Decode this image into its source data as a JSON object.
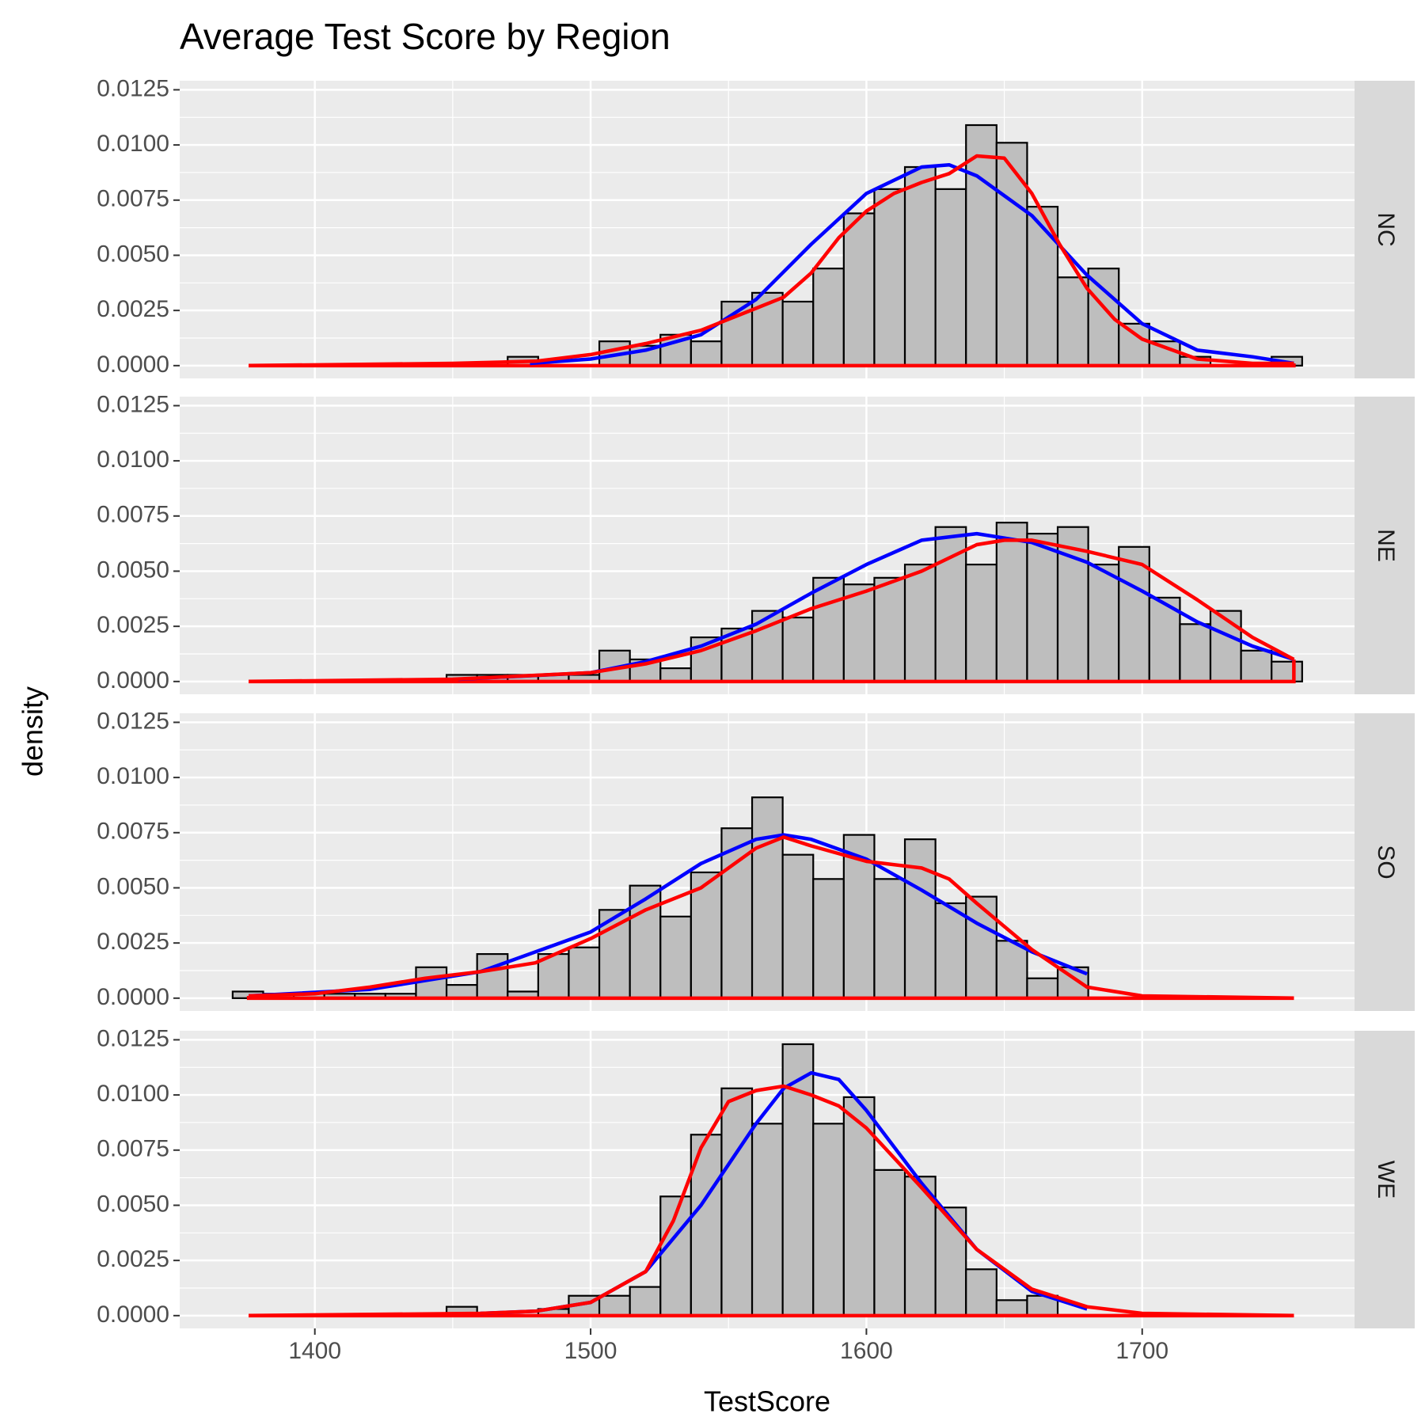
{
  "chart_data": {
    "type": "histogram",
    "title": "Average Test Score by Region",
    "x_label": "TestScore",
    "y_label": "density",
    "bar_color": "#bebebe",
    "kde_color": "#ff0000",
    "normal_color": "#0000ff",
    "xlim": [
      1351,
      1777
    ],
    "ylim": [
      -0.00058,
      0.01291
    ],
    "xticks": [
      1400,
      1500,
      1600,
      1700
    ],
    "yticks": [
      {
        "value": 0,
        "label": "0.0000"
      },
      {
        "value": 0.0025,
        "label": "0.0025"
      },
      {
        "value": 0.005,
        "label": "0.0050"
      },
      {
        "value": 0.0075,
        "label": "0.0075"
      },
      {
        "value": 0.01,
        "label": "0.0100"
      },
      {
        "value": 0.0125,
        "label": "0.0125"
      }
    ],
    "bins": [
      1370.2,
      1381.28,
      1392.36,
      1403.44,
      1414.52,
      1425.6,
      1436.68,
      1447.76,
      1458.84,
      1469.92,
      1481.0,
      1492.08,
      1503.16,
      1514.24,
      1525.32,
      1536.4,
      1547.48,
      1558.56,
      1569.64,
      1580.72,
      1591.8,
      1602.88,
      1613.96,
      1625.04,
      1636.12,
      1647.2,
      1658.28,
      1669.36,
      1680.44,
      1691.52,
      1702.6,
      1713.68,
      1724.76,
      1735.84,
      1746.92,
      1758.0
    ],
    "panels": [
      {
        "name": "NC",
        "values": [
          0,
          0,
          0,
          0,
          0,
          0,
          0,
          0,
          0,
          0.0004,
          0,
          0,
          0.0011,
          0.0009,
          0.0014,
          0.0011,
          0.0029,
          0.0033,
          0.0029,
          0.0044,
          0.0069,
          0.008,
          0.009,
          0.008,
          0.0109,
          0.0101,
          0.0072,
          0.004,
          0.0044,
          0.0019,
          0.0011,
          0.0004,
          0,
          0,
          0.0004
        ],
        "kde_x": [
          1376,
          1450,
          1480,
          1500,
          1520,
          1540,
          1560,
          1570,
          1580,
          1590,
          1600,
          1610,
          1620,
          1630,
          1640,
          1650,
          1660,
          1670,
          1680,
          1690,
          1700,
          1720,
          1740,
          1755
        ],
        "kde_y": [
          0,
          0.0001,
          0.0002,
          0.0005,
          0.001,
          0.0016,
          0.0026,
          0.0031,
          0.0042,
          0.0058,
          0.007,
          0.0078,
          0.0083,
          0.0087,
          0.0095,
          0.0094,
          0.0078,
          0.0055,
          0.0035,
          0.0021,
          0.0012,
          0.0003,
          0.0001,
          0.0001
        ],
        "normal_x": [
          1478,
          1500,
          1520,
          1540,
          1560,
          1580,
          1600,
          1620,
          1630,
          1640,
          1660,
          1680,
          1700,
          1720,
          1740,
          1755
        ],
        "normal_y": [
          0.0001,
          0.0003,
          0.0007,
          0.0014,
          0.003,
          0.0055,
          0.0078,
          0.009,
          0.0091,
          0.0086,
          0.0068,
          0.0041,
          0.0019,
          0.0007,
          0.0004,
          0.0001
        ]
      },
      {
        "name": "NE",
        "values": [
          0,
          0,
          0,
          0,
          0,
          0,
          0,
          0.0003,
          0.0003,
          0.0003,
          0.0003,
          0.0003,
          0.0014,
          0.001,
          0.0006,
          0.002,
          0.0024,
          0.0032,
          0.0029,
          0.0047,
          0.0044,
          0.0047,
          0.0053,
          0.007,
          0.0053,
          0.0072,
          0.0067,
          0.007,
          0.0053,
          0.0061,
          0.0038,
          0.0026,
          0.0032,
          0.0014,
          0.0009
        ],
        "kde_x": [
          1376,
          1450,
          1500,
          1520,
          1540,
          1560,
          1580,
          1600,
          1620,
          1640,
          1650,
          1660,
          1680,
          1700,
          1720,
          1740,
          1755
        ],
        "kde_y": [
          0,
          0.0001,
          0.0004,
          0.0008,
          0.0014,
          0.0023,
          0.0033,
          0.0041,
          0.005,
          0.0062,
          0.0064,
          0.0064,
          0.0059,
          0.0053,
          0.0037,
          0.002,
          0.001
        ],
        "normal_x": [
          1452,
          1500,
          1520,
          1540,
          1560,
          1580,
          1600,
          1620,
          1640,
          1660,
          1680,
          1700,
          1720,
          1740,
          1755
        ],
        "normal_y": [
          0.0001,
          0.0004,
          0.0009,
          0.0016,
          0.0026,
          0.004,
          0.0053,
          0.0064,
          0.0067,
          0.0063,
          0.0054,
          0.0041,
          0.0027,
          0.0016,
          0.001
        ]
      },
      {
        "name": "SO",
        "values": [
          0.0003,
          0.0002,
          0.0002,
          0.0002,
          0.0002,
          0.0002,
          0.0014,
          0.0006,
          0.002,
          0.0003,
          0.002,
          0.0023,
          0.004,
          0.0051,
          0.0037,
          0.0057,
          0.0077,
          0.0091,
          0.0065,
          0.0054,
          0.0074,
          0.0054,
          0.0072,
          0.0043,
          0.0046,
          0.0026,
          0.0009,
          0.0014,
          0,
          0,
          0,
          0,
          0,
          0,
          0
        ],
        "kde_x": [
          1376,
          1400,
          1420,
          1440,
          1460,
          1480,
          1500,
          1520,
          1540,
          1560,
          1570,
          1580,
          1600,
          1620,
          1630,
          1640,
          1660,
          1680,
          1700,
          1755
        ],
        "kde_y": [
          0.0001,
          0.0002,
          0.0005,
          0.0009,
          0.0012,
          0.0016,
          0.0027,
          0.004,
          0.005,
          0.0068,
          0.0073,
          0.0069,
          0.0062,
          0.0059,
          0.0054,
          0.0043,
          0.0022,
          0.0005,
          0.0001,
          0
        ],
        "normal_x": [
          1376,
          1420,
          1460,
          1500,
          1520,
          1540,
          1560,
          1570,
          1580,
          1600,
          1620,
          1640,
          1660,
          1680
        ],
        "normal_y": [
          0.0001,
          0.0004,
          0.0012,
          0.003,
          0.0045,
          0.0061,
          0.0072,
          0.0074,
          0.0072,
          0.0063,
          0.0049,
          0.0034,
          0.0021,
          0.0011
        ]
      },
      {
        "name": "WE",
        "values": [
          0,
          0,
          0,
          0,
          0,
          0,
          0,
          0.0004,
          0,
          0,
          0.0003,
          0.0009,
          0.0009,
          0.0013,
          0.0054,
          0.0082,
          0.0103,
          0.0087,
          0.0123,
          0.0087,
          0.0099,
          0.0066,
          0.0063,
          0.0049,
          0.0021,
          0.0007,
          0.0009,
          0,
          0,
          0,
          0,
          0,
          0,
          0,
          0
        ],
        "kde_x": [
          1376,
          1460,
          1480,
          1500,
          1520,
          1530,
          1540,
          1550,
          1560,
          1570,
          1580,
          1590,
          1600,
          1620,
          1640,
          1660,
          1680,
          1700,
          1755
        ],
        "kde_y": [
          0,
          0.0001,
          0.0002,
          0.0006,
          0.002,
          0.0043,
          0.0076,
          0.0097,
          0.0102,
          0.0104,
          0.01,
          0.0095,
          0.0085,
          0.0058,
          0.003,
          0.0012,
          0.0004,
          0.0001,
          0
        ],
        "normal_x": [
          1460,
          1480,
          1500,
          1520,
          1540,
          1560,
          1570,
          1580,
          1590,
          1600,
          1620,
          1640,
          1660,
          1680
        ],
        "normal_y": [
          0.0001,
          0.0002,
          0.0006,
          0.002,
          0.005,
          0.0087,
          0.0103,
          0.011,
          0.0107,
          0.0093,
          0.006,
          0.003,
          0.0011,
          0.0003
        ]
      }
    ]
  }
}
